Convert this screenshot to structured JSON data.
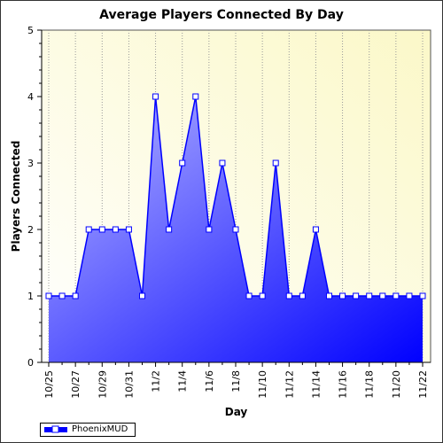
{
  "chart_data": {
    "type": "area",
    "title": "Average Players Connected By Day",
    "xlabel": "Day",
    "ylabel": "Players Connected",
    "ylim": [
      0,
      5
    ],
    "yticks": [
      "0",
      "1",
      "2",
      "3",
      "4",
      "5"
    ],
    "x": [
      "10/25",
      "10/26",
      "10/27",
      "10/28",
      "10/29",
      "10/30",
      "10/31",
      "11/1",
      "11/2",
      "11/3",
      "11/4",
      "11/5",
      "11/6",
      "11/7",
      "11/8",
      "11/9",
      "11/10",
      "11/11",
      "11/12",
      "11/13",
      "11/14",
      "11/15",
      "11/16",
      "11/17",
      "11/18",
      "11/19",
      "11/20",
      "11/21",
      "11/22"
    ],
    "xtick_labels": [
      "10/25",
      "10/27",
      "10/29",
      "10/31",
      "11/2",
      "11/4",
      "11/6",
      "11/8",
      "11/10",
      "11/12",
      "11/14",
      "11/16",
      "11/18",
      "11/20",
      "11/22"
    ],
    "series": [
      {
        "name": "PhoenixMUD",
        "values": [
          1,
          1,
          1,
          2,
          2,
          2,
          2,
          1,
          4,
          2,
          3,
          4,
          2,
          3,
          2,
          1,
          1,
          3,
          1,
          1,
          2,
          1,
          1,
          1,
          1,
          1,
          1,
          1,
          1
        ]
      }
    ],
    "grid": "vertical dotted",
    "legend": "bottom-left",
    "colors": {
      "background_top_left": "#ffffff",
      "background_bottom_right": "#fbf8c8",
      "area_light": "#b8b8ff",
      "area_dark": "#0000ff",
      "line": "#0000ff",
      "marker_fill": "#ffffff"
    }
  }
}
